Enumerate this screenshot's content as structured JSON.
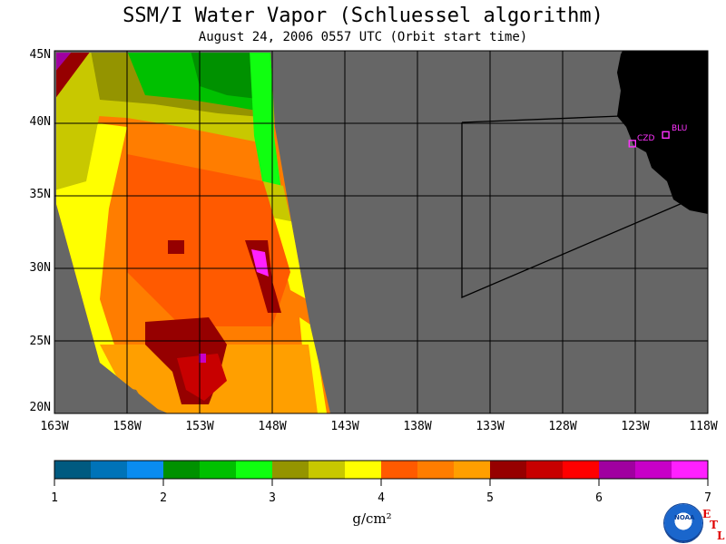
{
  "header": {
    "title": "SSM/I Water Vapor (Schluessel algorithm)",
    "subtitle": "August 24, 2006  0557 UTC  (Orbit start time)"
  },
  "map": {
    "lat_labels": [
      "45N",
      "40N",
      "35N",
      "30N",
      "25N",
      "20N"
    ],
    "lon_labels": [
      "163W",
      "158W",
      "153W",
      "148W",
      "143W",
      "138W",
      "133W",
      "128W",
      "123W",
      "118W"
    ],
    "lon_range": [
      -163,
      -118
    ],
    "lat_range": [
      20,
      45
    ],
    "land_color": "#000000",
    "no_data_color": "#666666",
    "stations": [
      {
        "label": "CZD",
        "lat": 38.6,
        "lon": -123.2
      },
      {
        "label": "BLU",
        "lat": 39.2,
        "lon": -120.9
      }
    ]
  },
  "colorbar": {
    "ticks": [
      "1",
      "2",
      "3",
      "4",
      "5",
      "6",
      "7"
    ],
    "unit": "g/cm²",
    "colors": [
      "#005a80",
      "#0073b8",
      "#0a8cf0",
      "#009100",
      "#00c000",
      "#10ff10",
      "#949400",
      "#c8c800",
      "#ffff00",
      "#ff5a00",
      "#ff7d00",
      "#ff9f00",
      "#960000",
      "#c80000",
      "#ff0000",
      "#a000a0",
      "#c800c8",
      "#ff20ff"
    ]
  },
  "logo": {
    "text": "NOAA",
    "etl": [
      "E",
      "T",
      "L"
    ]
  }
}
